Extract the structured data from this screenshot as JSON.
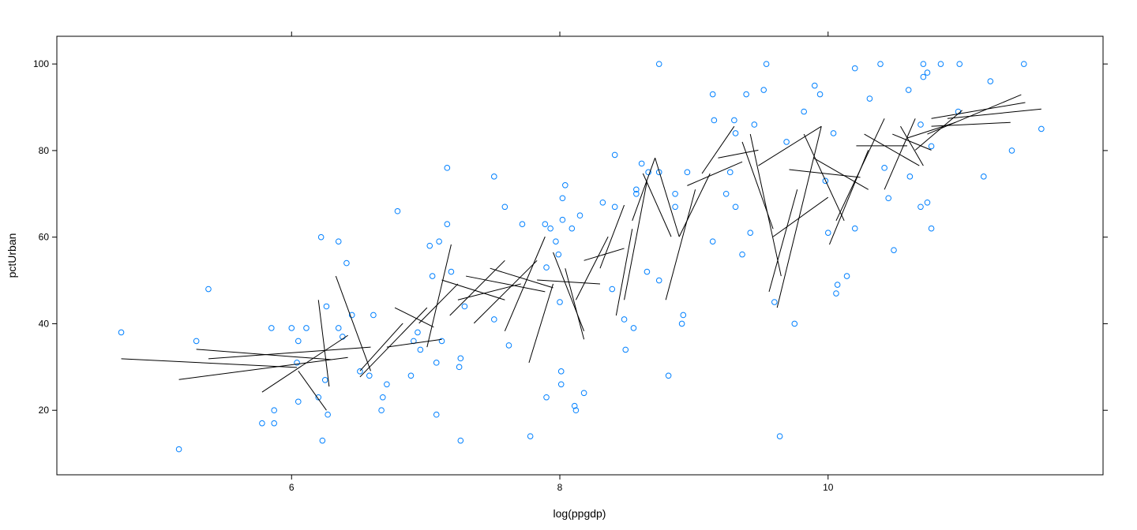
{
  "chart_data": {
    "type": "scatter",
    "x_label": "log(ppgdp)",
    "y_label": "pctUrban",
    "xlim": [
      4.25,
      12.05
    ],
    "ylim": [
      5.1,
      106.4
    ],
    "xticks": [
      6,
      8,
      10
    ],
    "yticks": [
      20,
      40,
      60,
      80,
      100
    ],
    "color": "#0080ff",
    "segment_color": "#000000",
    "x": [
      4.73,
      5.16,
      5.29,
      5.38,
      5.78,
      5.85,
      5.87,
      5.87,
      6.0,
      6.04,
      6.05,
      6.05,
      6.11,
      6.2,
      6.22,
      6.23,
      6.25,
      6.26,
      6.27,
      6.35,
      6.35,
      6.38,
      6.41,
      6.45,
      6.51,
      6.58,
      6.61,
      6.67,
      6.68,
      6.71,
      6.79,
      6.89,
      6.91,
      6.94,
      6.96,
      7.03,
      7.05,
      7.08,
      7.08,
      7.1,
      7.12,
      7.16,
      7.16,
      7.19,
      7.25,
      7.26,
      7.26,
      7.29,
      7.51,
      7.51,
      7.59,
      7.62,
      7.72,
      7.78,
      7.89,
      7.9,
      7.9,
      7.93,
      7.97,
      7.99,
      8.0,
      8.01,
      8.01,
      8.02,
      8.02,
      8.04,
      8.09,
      8.11,
      8.12,
      8.15,
      8.18,
      8.32,
      8.39,
      8.41,
      8.41,
      8.48,
      8.49,
      8.55,
      8.57,
      8.57,
      8.61,
      8.65,
      8.66,
      8.74,
      8.74,
      8.74,
      8.81,
      8.86,
      8.86,
      8.91,
      8.92,
      8.95,
      9.14,
      9.14,
      9.15,
      9.24,
      9.27,
      9.3,
      9.31,
      9.31,
      9.36,
      9.39,
      9.42,
      9.45,
      9.52,
      9.54,
      9.6,
      9.64,
      9.69,
      9.75,
      9.82,
      9.9,
      9.94,
      9.98,
      10.0,
      10.04,
      10.06,
      10.07,
      10.14,
      10.2,
      10.2,
      10.31,
      10.39,
      10.42,
      10.45,
      10.49,
      10.6,
      10.61,
      10.69,
      10.71,
      10.71,
      10.74,
      10.74,
      10.77,
      10.84,
      10.98,
      11.16,
      11.21,
      11.37,
      11.46,
      11.59,
      10.77,
      10.69,
      10.97
    ],
    "values": [
      38,
      11,
      36,
      48,
      17,
      39,
      20,
      17,
      39,
      31,
      36,
      22,
      39,
      23,
      60,
      13,
      27,
      44,
      19,
      59,
      39,
      37,
      54,
      42,
      29,
      28,
      42,
      20,
      23,
      26,
      66,
      28,
      36,
      38,
      34,
      58,
      51,
      31,
      19,
      59,
      36,
      76,
      63,
      52,
      30,
      13,
      32,
      44,
      74,
      41,
      67,
      35,
      63,
      14,
      63,
      53,
      23,
      62,
      59,
      56,
      45,
      26,
      29,
      69,
      64,
      72,
      62,
      21,
      20,
      65,
      24,
      68,
      48,
      79,
      67,
      41,
      34,
      39,
      70,
      71,
      77,
      52,
      75,
      100,
      50,
      75,
      28,
      70,
      67,
      40,
      42,
      75,
      93,
      59,
      87,
      70,
      75,
      87,
      84,
      67,
      56,
      93,
      61,
      86,
      94,
      100,
      45,
      14,
      82,
      40,
      89,
      95,
      93,
      73,
      61,
      84,
      47,
      49,
      51,
      62,
      99,
      92,
      100,
      76,
      69,
      57,
      94,
      74,
      67,
      100,
      97,
      98,
      68,
      62,
      100,
      100,
      74,
      96,
      80,
      100,
      85,
      81,
      86,
      89
    ],
    "segments": [
      [
        4.73,
        31.9,
        6.04,
        29.9
      ],
      [
        5.16,
        27.1,
        6.42,
        32.2
      ],
      [
        5.38,
        31.9,
        6.59,
        34.6
      ],
      [
        5.29,
        34.1,
        6.3,
        31.7
      ],
      [
        5.78,
        24.2,
        6.42,
        37.3
      ],
      [
        6.05,
        29.1,
        6.26,
        20.0
      ],
      [
        6.2,
        45.5,
        6.28,
        25.5
      ],
      [
        6.33,
        51.0,
        6.59,
        29.1
      ],
      [
        6.51,
        29.1,
        6.83,
        40.1
      ],
      [
        6.51,
        27.7,
        7.01,
        43.7
      ],
      [
        6.71,
        34.6,
        7.12,
        36.4
      ],
      [
        6.77,
        43.7,
        7.06,
        39.2
      ],
      [
        6.95,
        40.1,
        7.24,
        49.2
      ],
      [
        7.01,
        34.6,
        7.19,
        58.3
      ],
      [
        7.12,
        50.1,
        7.59,
        45.5
      ],
      [
        7.18,
        41.9,
        7.59,
        54.6
      ],
      [
        7.24,
        45.5,
        7.71,
        49.2
      ],
      [
        7.3,
        51.0,
        7.89,
        47.4
      ],
      [
        7.36,
        40.1,
        7.83,
        54.6
      ],
      [
        7.48,
        52.8,
        7.95,
        48.3
      ],
      [
        7.59,
        38.3,
        7.89,
        60.1
      ],
      [
        7.77,
        31.0,
        7.95,
        49.2
      ],
      [
        7.83,
        50.1,
        8.3,
        49.2
      ],
      [
        7.95,
        56.5,
        8.18,
        38.3
      ],
      [
        8.04,
        52.8,
        8.18,
        36.4
      ],
      [
        8.12,
        45.5,
        8.36,
        60.1
      ],
      [
        8.18,
        54.6,
        8.48,
        57.4
      ],
      [
        8.3,
        52.8,
        8.48,
        67.4
      ],
      [
        8.42,
        41.9,
        8.54,
        61.9
      ],
      [
        8.48,
        45.5,
        8.65,
        72.9
      ],
      [
        8.54,
        63.8,
        8.71,
        78.3
      ],
      [
        8.62,
        74.7,
        8.83,
        60.1
      ],
      [
        8.71,
        78.3,
        8.89,
        60.1
      ],
      [
        8.79,
        45.5,
        9.01,
        71.0
      ],
      [
        8.89,
        60.1,
        9.12,
        74.7
      ],
      [
        8.95,
        71.9,
        9.36,
        77.4
      ],
      [
        9.06,
        74.7,
        9.3,
        85.6
      ],
      [
        9.18,
        78.3,
        9.48,
        80.1
      ],
      [
        9.36,
        82.0,
        9.59,
        61.9
      ],
      [
        9.42,
        83.8,
        9.65,
        51.0
      ],
      [
        9.48,
        76.5,
        9.95,
        85.6
      ],
      [
        9.56,
        47.4,
        9.77,
        71.0
      ],
      [
        9.62,
        43.7,
        9.95,
        85.6
      ],
      [
        9.59,
        60.1,
        10.0,
        69.2
      ],
      [
        9.71,
        75.6,
        10.24,
        73.8
      ],
      [
        9.82,
        83.8,
        10.12,
        63.8
      ],
      [
        9.89,
        78.3,
        10.3,
        71.0
      ],
      [
        10.01,
        58.3,
        10.3,
        80.1
      ],
      [
        10.06,
        63.8,
        10.42,
        87.4
      ],
      [
        10.21,
        81.1,
        10.59,
        81.1
      ],
      [
        10.27,
        83.8,
        10.68,
        76.5
      ],
      [
        10.42,
        71.0,
        10.65,
        87.4
      ],
      [
        10.48,
        83.8,
        10.77,
        80.1
      ],
      [
        10.59,
        82.9,
        10.95,
        86.5
      ],
      [
        10.65,
        80.1,
        11.0,
        89.3
      ],
      [
        10.77,
        85.6,
        11.36,
        86.5
      ],
      [
        10.77,
        87.4,
        11.47,
        91.1
      ],
      [
        10.89,
        87.4,
        11.59,
        89.6
      ],
      [
        10.74,
        83.8,
        11.44,
        92.9
      ],
      [
        10.54,
        85.6,
        10.71,
        76.5
      ]
    ]
  }
}
